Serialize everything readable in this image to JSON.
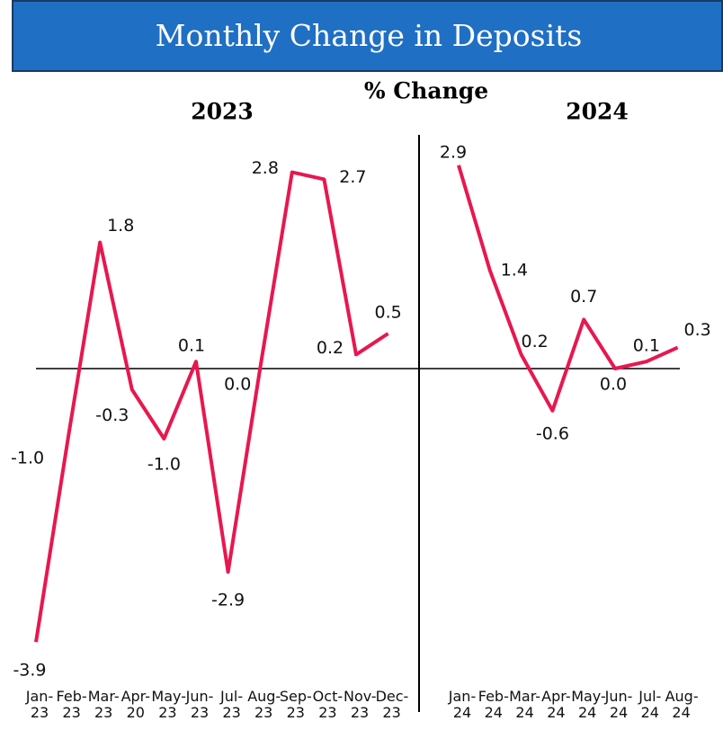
{
  "chart_data": {
    "type": "line",
    "title": "Monthly Change in Deposits",
    "subtitle": "% Change",
    "categories": [
      "Jan-23",
      "Feb-23",
      "Mar-23",
      "Apr-20",
      "May-23",
      "Jun-23",
      "Jul-23",
      "Aug-23",
      "Sep-23",
      "Oct-23",
      "Nov-23",
      "Dec-23",
      "Jan-24",
      "Feb-24",
      "Mar-24",
      "Apr-24",
      "May-24",
      "Jun-24",
      "Jul-24",
      "Aug-24"
    ],
    "series": [
      {
        "name": "2023",
        "color": "#e8174f",
        "values": [
          -3.9,
          -1.0,
          1.8,
          -0.3,
          -1.0,
          0.1,
          -2.9,
          0.0,
          2.8,
          2.7,
          0.2,
          0.5,
          null,
          null,
          null,
          null,
          null,
          null,
          null,
          null
        ],
        "value_labels": [
          "-3.9",
          "-1.0",
          "1.8",
          "-0.3",
          "-1.0",
          "0.1",
          "-2.9",
          "0.0",
          "2.8",
          "2.7",
          "0.2",
          "0.5",
          null,
          null,
          null,
          null,
          null,
          null,
          null,
          null
        ]
      },
      {
        "name": "2024",
        "color": "#e8174f",
        "values": [
          null,
          null,
          null,
          null,
          null,
          null,
          null,
          null,
          null,
          null,
          null,
          null,
          2.9,
          1.4,
          0.2,
          -0.6,
          0.7,
          0.0,
          0.1,
          0.3
        ],
        "value_labels": [
          null,
          null,
          null,
          null,
          null,
          null,
          null,
          null,
          null,
          null,
          null,
          null,
          "2.9",
          "1.4",
          "0.2",
          "-0.6",
          "0.7",
          "0.0",
          "0.1",
          "0.3"
        ]
      }
    ],
    "ylim": [
      -4.5,
      3.5
    ],
    "grid": false
  }
}
